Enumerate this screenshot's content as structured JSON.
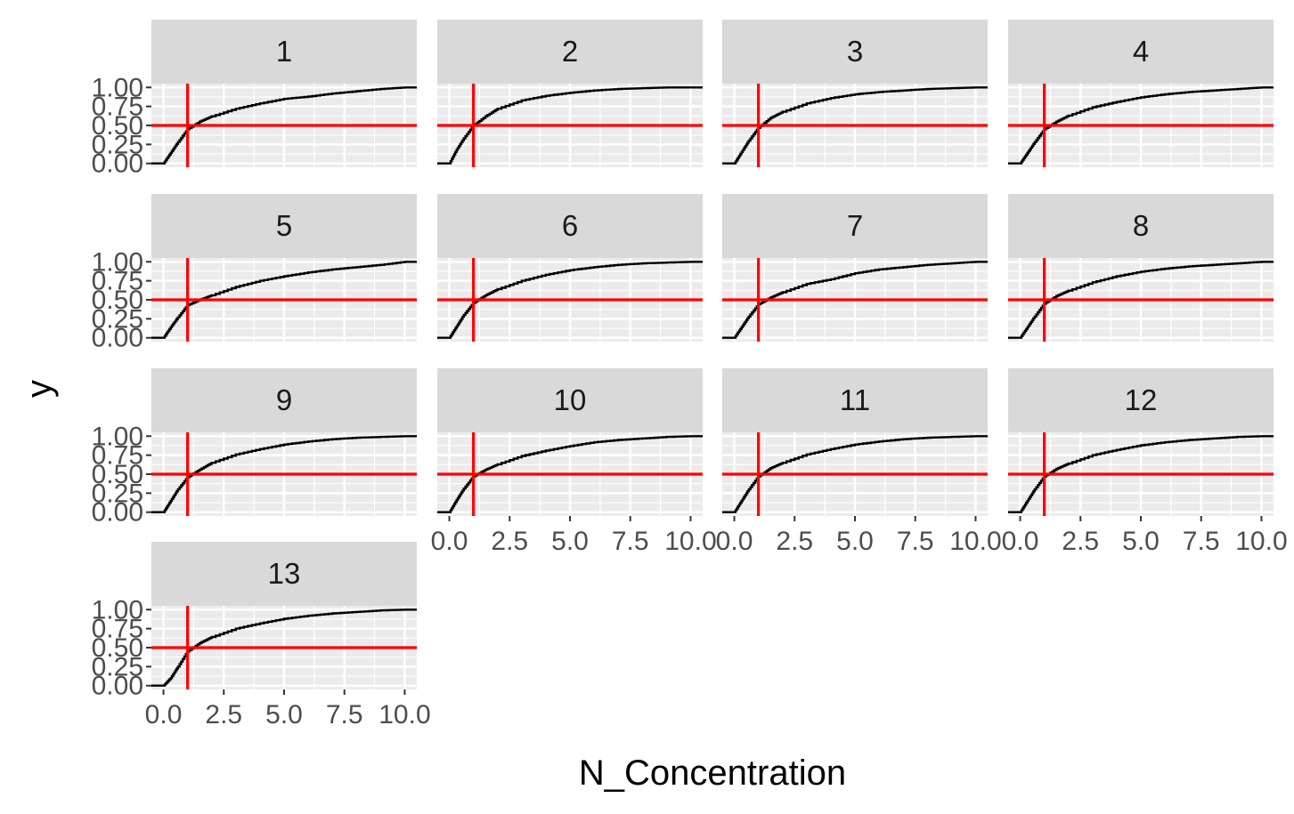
{
  "chart_data": {
    "type": "line",
    "subtype": "faceted-ecdf",
    "xlabel": "N_Concentration",
    "ylabel": "y",
    "xlim": [
      -0.5,
      10.5
    ],
    "ylim": [
      -0.05,
      1.05
    ],
    "x_ticks": [
      0,
      2.5,
      5,
      7.5,
      10
    ],
    "x_tick_labels": [
      "0.0",
      "2.5",
      "5.0",
      "7.5",
      "10.0"
    ],
    "y_ticks": [
      0,
      0.25,
      0.5,
      0.75,
      1
    ],
    "y_tick_labels": [
      "0.00",
      "0.25",
      "0.50",
      "0.75",
      "1.00"
    ],
    "reference_lines": {
      "hline_y": 0.5,
      "vline_x": 1,
      "color": "#FF0000"
    },
    "line_color": "#000000",
    "panel_background": "#EBEBEB",
    "strip_background": "#D9D9D9",
    "grid": true,
    "facets": [
      {
        "label": "1",
        "x": [
          0,
          0.3,
          0.6,
          1.0,
          1.5,
          2,
          3,
          4,
          5,
          6,
          7,
          8,
          9,
          10
        ],
        "y": [
          0,
          0.14,
          0.28,
          0.45,
          0.55,
          0.62,
          0.72,
          0.79,
          0.85,
          0.88,
          0.92,
          0.95,
          0.98,
          1.0
        ]
      },
      {
        "label": "2",
        "x": [
          0,
          0.3,
          0.6,
          1.0,
          1.5,
          2,
          3,
          4,
          5,
          6,
          7,
          8,
          9,
          10
        ],
        "y": [
          0,
          0.18,
          0.33,
          0.5,
          0.62,
          0.72,
          0.83,
          0.89,
          0.93,
          0.96,
          0.98,
          0.99,
          1.0,
          1.0
        ]
      },
      {
        "label": "3",
        "x": [
          0,
          0.3,
          0.6,
          1.0,
          1.5,
          2,
          3,
          4,
          5,
          6,
          7,
          8,
          9,
          10
        ],
        "y": [
          0,
          0.15,
          0.3,
          0.47,
          0.6,
          0.68,
          0.79,
          0.86,
          0.91,
          0.94,
          0.96,
          0.98,
          0.99,
          1.0
        ]
      },
      {
        "label": "4",
        "x": [
          0,
          0.3,
          0.6,
          1.0,
          1.5,
          2,
          3,
          4,
          5,
          6,
          7,
          8,
          9,
          10
        ],
        "y": [
          0,
          0.14,
          0.28,
          0.45,
          0.55,
          0.63,
          0.74,
          0.81,
          0.87,
          0.91,
          0.94,
          0.96,
          0.98,
          1.0
        ]
      },
      {
        "label": "5",
        "x": [
          0,
          0.3,
          0.6,
          1.0,
          1.5,
          2,
          3,
          4,
          5,
          6,
          7,
          8,
          9,
          10
        ],
        "y": [
          0,
          0.14,
          0.27,
          0.43,
          0.5,
          0.56,
          0.67,
          0.75,
          0.81,
          0.86,
          0.9,
          0.93,
          0.96,
          1.0
        ]
      },
      {
        "label": "6",
        "x": [
          0,
          0.3,
          0.6,
          1.0,
          1.5,
          2,
          3,
          4,
          5,
          6,
          7,
          8,
          9,
          10
        ],
        "y": [
          0,
          0.15,
          0.3,
          0.46,
          0.56,
          0.64,
          0.75,
          0.83,
          0.89,
          0.93,
          0.96,
          0.98,
          0.99,
          1.0
        ]
      },
      {
        "label": "7",
        "x": [
          0,
          0.3,
          0.6,
          1.0,
          1.5,
          2,
          3,
          4,
          5,
          6,
          7,
          8,
          9,
          10
        ],
        "y": [
          0,
          0.14,
          0.28,
          0.44,
          0.53,
          0.6,
          0.71,
          0.77,
          0.85,
          0.9,
          0.93,
          0.96,
          0.98,
          1.0
        ]
      },
      {
        "label": "8",
        "x": [
          0,
          0.3,
          0.6,
          1.0,
          1.5,
          2,
          3,
          4,
          5,
          6,
          7,
          8,
          9,
          10
        ],
        "y": [
          0,
          0.14,
          0.28,
          0.45,
          0.55,
          0.62,
          0.73,
          0.81,
          0.87,
          0.91,
          0.94,
          0.96,
          0.98,
          1.0
        ]
      },
      {
        "label": "9",
        "x": [
          0,
          0.3,
          0.6,
          1.0,
          1.5,
          2,
          3,
          4,
          5,
          6,
          7,
          8,
          9,
          10
        ],
        "y": [
          0,
          0.15,
          0.3,
          0.46,
          0.56,
          0.65,
          0.76,
          0.83,
          0.89,
          0.93,
          0.96,
          0.98,
          0.99,
          1.0
        ]
      },
      {
        "label": "10",
        "x": [
          0,
          0.3,
          0.6,
          1.0,
          1.5,
          2,
          3,
          4,
          5,
          6,
          7,
          8,
          9,
          10
        ],
        "y": [
          0,
          0.16,
          0.31,
          0.47,
          0.56,
          0.63,
          0.74,
          0.81,
          0.87,
          0.92,
          0.95,
          0.97,
          0.99,
          1.0
        ]
      },
      {
        "label": "11",
        "x": [
          0,
          0.3,
          0.6,
          1.0,
          1.5,
          2,
          3,
          4,
          5,
          6,
          7,
          8,
          9,
          10
        ],
        "y": [
          0,
          0.15,
          0.3,
          0.47,
          0.58,
          0.65,
          0.76,
          0.83,
          0.89,
          0.93,
          0.96,
          0.98,
          0.99,
          1.0
        ]
      },
      {
        "label": "12",
        "x": [
          0,
          0.3,
          0.6,
          1.0,
          1.5,
          2,
          3,
          4,
          5,
          6,
          7,
          8,
          9,
          10
        ],
        "y": [
          0,
          0.15,
          0.3,
          0.47,
          0.57,
          0.64,
          0.75,
          0.82,
          0.88,
          0.92,
          0.95,
          0.97,
          0.99,
          1.0
        ]
      },
      {
        "label": "13",
        "x": [
          0,
          0.3,
          0.6,
          1.0,
          1.5,
          2,
          3,
          4,
          5,
          6,
          7,
          8,
          9,
          10
        ],
        "y": [
          0,
          0.1,
          0.25,
          0.45,
          0.56,
          0.64,
          0.75,
          0.82,
          0.88,
          0.92,
          0.95,
          0.97,
          0.99,
          1.0
        ]
      }
    ]
  }
}
